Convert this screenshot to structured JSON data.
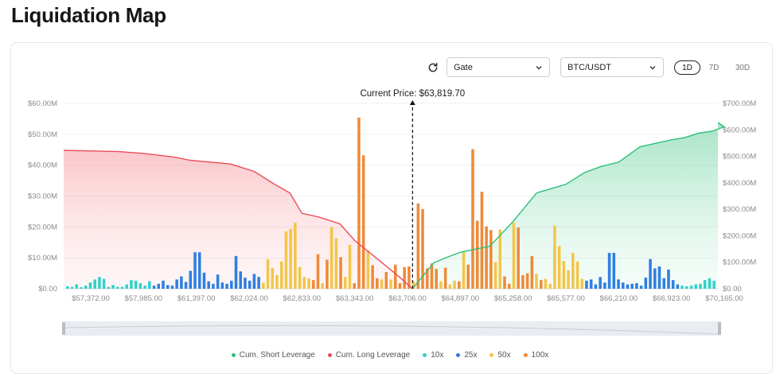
{
  "header": {
    "title": "Liquidation Map"
  },
  "controls": {
    "exchange": "Gate",
    "pair": "BTC/USDT",
    "ranges": [
      {
        "label": "1D",
        "active": true
      },
      {
        "label": "7D",
        "active": false
      },
      {
        "label": "30D",
        "active": false
      }
    ]
  },
  "colors": {
    "short": "#2fbf7a",
    "long": "#e8505b",
    "lev10x": "#33d1c9",
    "lev25x": "#2f7fe0",
    "lev50x": "#f2c64a",
    "lev100x": "#ee8a3a"
  },
  "chart_data": {
    "type": "bar",
    "current_price_label": "Current Price: $63,819.70",
    "current_price": 63819.7,
    "y_left": {
      "min": 0,
      "max": 60,
      "ticks": [
        "$0.00",
        "$10.00M",
        "$20.00M",
        "$30.00M",
        "$40.00M",
        "$50.00M",
        "$60.00M"
      ]
    },
    "y_right": {
      "min": 0,
      "max": 700,
      "ticks": [
        "$0.00",
        "$100.00M",
        "$200.00M",
        "$300.00M",
        "$400.00M",
        "$500.00M",
        "$600.00M",
        "$700.00M"
      ]
    },
    "x_tick_labels": [
      "$57,372.00",
      "$57,985.00",
      "$61,397.00",
      "$62,024.00",
      "$62,833.00",
      "$63,343.00",
      "$63,706.00",
      "$64,897.00",
      "$65,258.00",
      "$65,577.00",
      "$66,210.00",
      "$66,923.00",
      "$70,165.00"
    ],
    "grid": true,
    "legend_position": "bottom",
    "legend": [
      "Cum. Short Leverage",
      "Cum. Long Leverage",
      "10x",
      "25x",
      "50x",
      "100x"
    ],
    "bars": [
      {
        "l": "10x",
        "v": 0.8
      },
      {
        "l": "10x",
        "v": 0.6
      },
      {
        "l": "10x",
        "v": 1.4
      },
      {
        "l": "10x",
        "v": 0.5
      },
      {
        "l": "10x",
        "v": 1.0
      },
      {
        "l": "10x",
        "v": 2.0
      },
      {
        "l": "10x",
        "v": 3.0
      },
      {
        "l": "10x",
        "v": 3.8
      },
      {
        "l": "10x",
        "v": 3.2
      },
      {
        "l": "10x",
        "v": 0.6
      },
      {
        "l": "10x",
        "v": 1.2
      },
      {
        "l": "10x",
        "v": 0.6
      },
      {
        "l": "10x",
        "v": 0.6
      },
      {
        "l": "10x",
        "v": 1.4
      },
      {
        "l": "10x",
        "v": 2.8
      },
      {
        "l": "10x",
        "v": 2.6
      },
      {
        "l": "10x",
        "v": 1.8
      },
      {
        "l": "10x",
        "v": 1.0
      },
      {
        "l": "10x",
        "v": 2.4
      },
      {
        "l": "25x",
        "v": 1.0
      },
      {
        "l": "25x",
        "v": 1.6
      },
      {
        "l": "25x",
        "v": 2.6
      },
      {
        "l": "25x",
        "v": 1.2
      },
      {
        "l": "25x",
        "v": 1.0
      },
      {
        "l": "25x",
        "v": 3.0
      },
      {
        "l": "25x",
        "v": 4.0
      },
      {
        "l": "25x",
        "v": 2.2
      },
      {
        "l": "25x",
        "v": 5.8
      },
      {
        "l": "25x",
        "v": 11.8
      },
      {
        "l": "25x",
        "v": 11.8
      },
      {
        "l": "25x",
        "v": 5.2
      },
      {
        "l": "25x",
        "v": 2.4
      },
      {
        "l": "25x",
        "v": 1.6
      },
      {
        "l": "25x",
        "v": 4.6
      },
      {
        "l": "25x",
        "v": 2.0
      },
      {
        "l": "25x",
        "v": 1.6
      },
      {
        "l": "25x",
        "v": 2.6
      },
      {
        "l": "25x",
        "v": 10.6
      },
      {
        "l": "25x",
        "v": 5.6
      },
      {
        "l": "25x",
        "v": 3.6
      },
      {
        "l": "25x",
        "v": 2.6
      },
      {
        "l": "25x",
        "v": 4.8
      },
      {
        "l": "25x",
        "v": 3.8
      },
      {
        "l": "50x",
        "v": 2.0
      },
      {
        "l": "50x",
        "v": 9.6
      },
      {
        "l": "50x",
        "v": 6.8
      },
      {
        "l": "50x",
        "v": 4.4
      },
      {
        "l": "50x",
        "v": 8.8
      },
      {
        "l": "50x",
        "v": 18.6
      },
      {
        "l": "50x",
        "v": 19.4
      },
      {
        "l": "50x",
        "v": 21.4
      },
      {
        "l": "50x",
        "v": 7.0
      },
      {
        "l": "50x",
        "v": 3.8
      },
      {
        "l": "50x",
        "v": 3.4
      },
      {
        "l": "100x",
        "v": 2.8
      },
      {
        "l": "100x",
        "v": 11.2
      },
      {
        "l": "50x",
        "v": 1.8
      },
      {
        "l": "100x",
        "v": 9.4
      },
      {
        "l": "50x",
        "v": 20.0
      },
      {
        "l": "50x",
        "v": 16.4
      },
      {
        "l": "100x",
        "v": 10.2
      },
      {
        "l": "50x",
        "v": 3.8
      },
      {
        "l": "50x",
        "v": 14.2
      },
      {
        "l": "100x",
        "v": 1.8
      },
      {
        "l": "100x",
        "v": 55.4
      },
      {
        "l": "100x",
        "v": 43.2
      },
      {
        "l": "50x",
        "v": 12.4
      },
      {
        "l": "100x",
        "v": 7.6
      },
      {
        "l": "100x",
        "v": 3.4
      },
      {
        "l": "50x",
        "v": 3.0
      },
      {
        "l": "100x",
        "v": 5.4
      },
      {
        "l": "50x",
        "v": 3.0
      },
      {
        "l": "100x",
        "v": 7.8
      },
      {
        "l": "100x",
        "v": 1.8
      },
      {
        "l": "100x",
        "v": 7.0
      },
      {
        "l": "100x",
        "v": 7.2
      },
      {
        "l": "50x",
        "v": 2.4
      },
      {
        "l": "100x",
        "v": 27.6
      },
      {
        "l": "100x",
        "v": 25.8
      },
      {
        "l": "100x",
        "v": 6.6
      },
      {
        "l": "100x",
        "v": 8.2
      },
      {
        "l": "100x",
        "v": 6.4
      },
      {
        "l": "50x",
        "v": 2.4
      },
      {
        "l": "100x",
        "v": 6.8
      },
      {
        "l": "50x",
        "v": 1.4
      },
      {
        "l": "50x",
        "v": 2.6
      },
      {
        "l": "100x",
        "v": 2.4
      },
      {
        "l": "50x",
        "v": 12.2
      },
      {
        "l": "100x",
        "v": 7.8
      },
      {
        "l": "100x",
        "v": 45.2
      },
      {
        "l": "100x",
        "v": 22.0
      },
      {
        "l": "100x",
        "v": 31.4
      },
      {
        "l": "100x",
        "v": 20.2
      },
      {
        "l": "100x",
        "v": 19.0
      },
      {
        "l": "50x",
        "v": 8.6
      },
      {
        "l": "50x",
        "v": 19.2
      },
      {
        "l": "100x",
        "v": 4.0
      },
      {
        "l": "100x",
        "v": 1.6
      },
      {
        "l": "50x",
        "v": 21.4
      },
      {
        "l": "100x",
        "v": 19.8
      },
      {
        "l": "100x",
        "v": 4.4
      },
      {
        "l": "100x",
        "v": 5.0
      },
      {
        "l": "100x",
        "v": 10.6
      },
      {
        "l": "50x",
        "v": 4.8
      },
      {
        "l": "100x",
        "v": 2.8
      },
      {
        "l": "50x",
        "v": 3.2
      },
      {
        "l": "50x",
        "v": 1.6
      },
      {
        "l": "50x",
        "v": 20.4
      },
      {
        "l": "50x",
        "v": 13.8
      },
      {
        "l": "50x",
        "v": 9.0
      },
      {
        "l": "50x",
        "v": 6.0
      },
      {
        "l": "50x",
        "v": 11.6
      },
      {
        "l": "50x",
        "v": 8.8
      },
      {
        "l": "50x",
        "v": 3.2
      },
      {
        "l": "25x",
        "v": 2.6
      },
      {
        "l": "25x",
        "v": 3.0
      },
      {
        "l": "25x",
        "v": 1.4
      },
      {
        "l": "25x",
        "v": 3.8
      },
      {
        "l": "25x",
        "v": 2.0
      },
      {
        "l": "25x",
        "v": 11.6
      },
      {
        "l": "25x",
        "v": 11.6
      },
      {
        "l": "25x",
        "v": 3.0
      },
      {
        "l": "25x",
        "v": 2.0
      },
      {
        "l": "25x",
        "v": 1.4
      },
      {
        "l": "25x",
        "v": 1.6
      },
      {
        "l": "25x",
        "v": 1.8
      },
      {
        "l": "25x",
        "v": 1.0
      },
      {
        "l": "25x",
        "v": 3.6
      },
      {
        "l": "25x",
        "v": 9.6
      },
      {
        "l": "25x",
        "v": 6.6
      },
      {
        "l": "25x",
        "v": 7.2
      },
      {
        "l": "25x",
        "v": 3.4
      },
      {
        "l": "25x",
        "v": 6.2
      },
      {
        "l": "25x",
        "v": 2.8
      },
      {
        "l": "25x",
        "v": 1.4
      },
      {
        "l": "10x",
        "v": 1.0
      },
      {
        "l": "10x",
        "v": 0.8
      },
      {
        "l": "10x",
        "v": 1.0
      },
      {
        "l": "10x",
        "v": 1.4
      },
      {
        "l": "10x",
        "v": 1.6
      },
      {
        "l": "10x",
        "v": 2.8
      },
      {
        "l": "10x",
        "v": 3.4
      },
      {
        "l": "10x",
        "v": 2.6
      }
    ],
    "cum_long": [
      [
        57372,
        44.8
      ],
      [
        57700,
        44.4
      ],
      [
        58000,
        43.8
      ],
      [
        59000,
        43.2
      ],
      [
        60000,
        42.6
      ],
      [
        61000,
        41.6
      ],
      [
        61800,
        40.4
      ],
      [
        62100,
        38.0
      ],
      [
        62400,
        34.0
      ],
      [
        62650,
        31.0
      ],
      [
        62833,
        24.4
      ],
      [
        63000,
        23.2
      ],
      [
        63200,
        21.0
      ],
      [
        63343,
        15.6
      ],
      [
        63500,
        9.6
      ],
      [
        63650,
        3.8
      ],
      [
        63819.7,
        0
      ]
    ],
    "cum_short": [
      [
        63819.7,
        0
      ],
      [
        64000,
        3.2
      ],
      [
        64300,
        8.4
      ],
      [
        64600,
        10.2
      ],
      [
        64897,
        11.8
      ],
      [
        65100,
        13.8
      ],
      [
        65258,
        21.8
      ],
      [
        65400,
        31.0
      ],
      [
        65577,
        33.8
      ],
      [
        65800,
        37.6
      ],
      [
        66000,
        39.6
      ],
      [
        66210,
        41.0
      ],
      [
        66500,
        46.0
      ],
      [
        66923,
        48.2
      ],
      [
        67800,
        49.0
      ],
      [
        68600,
        50.4
      ],
      [
        69400,
        51.0
      ],
      [
        70165,
        52.4
      ],
      [
        71000,
        53.8
      ]
    ]
  },
  "legend_items": [
    {
      "label": "Cum. Short Leverage",
      "color": "#2fbf7a"
    },
    {
      "label": "Cum. Long Leverage",
      "color": "#e8505b"
    },
    {
      "label": "10x",
      "color": "#33d1c9"
    },
    {
      "label": "25x",
      "color": "#2f7fe0"
    },
    {
      "label": "50x",
      "color": "#f2c64a"
    },
    {
      "label": "100x",
      "color": "#ee8a3a"
    }
  ]
}
